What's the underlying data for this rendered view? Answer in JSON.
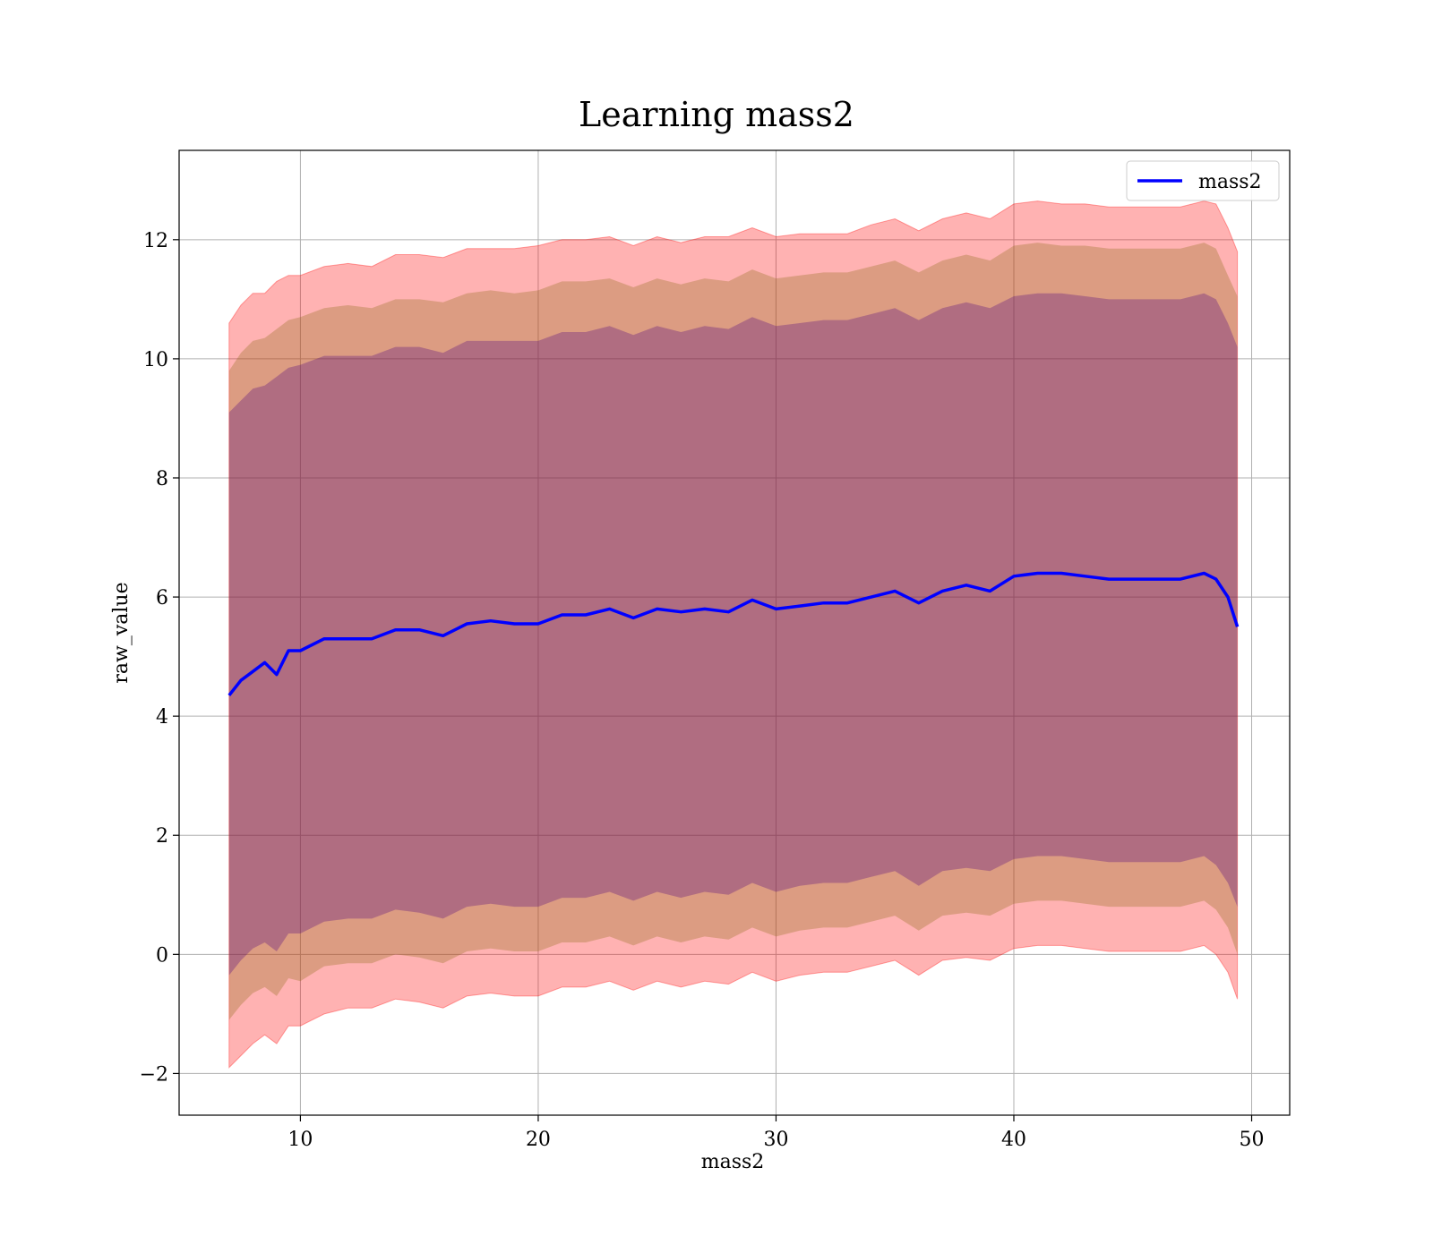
{
  "chart_data": {
    "type": "line",
    "title": "Learning mass2",
    "xlabel": "mass2",
    "ylabel": "raw_value",
    "xlim": [
      4.9,
      51.6
    ],
    "ylim": [
      -2.7,
      13.5
    ],
    "xticks": [
      10,
      20,
      30,
      40,
      50
    ],
    "yticks": [
      -2,
      0,
      2,
      4,
      6,
      8,
      10,
      12
    ],
    "grid": true,
    "legend": {
      "position": "top-right"
    },
    "colors": {
      "line": "#0000ff",
      "band": "#ff0000",
      "mid_band": "#8b6914",
      "inner_band": "#4b0082"
    },
    "x": [
      7.0,
      7.5,
      8.0,
      8.5,
      9.0,
      9.5,
      10.0,
      11.0,
      12.0,
      13.0,
      14.0,
      15.0,
      16.0,
      17.0,
      18.0,
      19.0,
      20.0,
      21.0,
      22.0,
      23.0,
      24.0,
      25.0,
      26.0,
      27.0,
      28.0,
      29.0,
      30.0,
      31.0,
      32.0,
      33.0,
      34.0,
      35.0,
      36.0,
      37.0,
      38.0,
      39.0,
      40.0,
      41.0,
      42.0,
      43.0,
      44.0,
      45.0,
      46.0,
      47.0,
      48.0,
      48.5,
      49.0,
      49.4
    ],
    "series": [
      {
        "name": "mass2",
        "values": [
          4.35,
          4.6,
          4.75,
          4.9,
          4.7,
          5.1,
          5.1,
          5.3,
          5.3,
          5.3,
          5.45,
          5.45,
          5.35,
          5.55,
          5.6,
          5.55,
          5.55,
          5.7,
          5.7,
          5.8,
          5.65,
          5.8,
          5.75,
          5.8,
          5.75,
          5.95,
          5.8,
          5.85,
          5.9,
          5.9,
          6.0,
          6.1,
          5.9,
          6.1,
          6.2,
          6.1,
          6.35,
          6.4,
          6.4,
          6.35,
          6.3,
          6.3,
          6.3,
          6.3,
          6.4,
          6.3,
          6.0,
          5.5
        ]
      }
    ],
    "bands": {
      "outer_upper": [
        10.6,
        10.9,
        11.1,
        11.1,
        11.3,
        11.4,
        11.4,
        11.55,
        11.6,
        11.55,
        11.75,
        11.75,
        11.7,
        11.85,
        11.85,
        11.85,
        11.9,
        12.0,
        12.0,
        12.05,
        11.9,
        12.05,
        11.95,
        12.05,
        12.05,
        12.2,
        12.05,
        12.1,
        12.1,
        12.1,
        12.25,
        12.35,
        12.15,
        12.35,
        12.45,
        12.35,
        12.6,
        12.65,
        12.6,
        12.6,
        12.55,
        12.55,
        12.55,
        12.55,
        12.65,
        12.6,
        12.2,
        11.8
      ],
      "outer_lower": [
        -1.9,
        -1.7,
        -1.5,
        -1.35,
        -1.5,
        -1.2,
        -1.2,
        -1.0,
        -0.9,
        -0.9,
        -0.75,
        -0.8,
        -0.9,
        -0.7,
        -0.65,
        -0.7,
        -0.7,
        -0.55,
        -0.55,
        -0.45,
        -0.6,
        -0.45,
        -0.55,
        -0.45,
        -0.5,
        -0.3,
        -0.45,
        -0.35,
        -0.3,
        -0.3,
        -0.2,
        -0.1,
        -0.35,
        -0.1,
        -0.05,
        -0.1,
        0.1,
        0.15,
        0.15,
        0.1,
        0.05,
        0.05,
        0.05,
        0.05,
        0.15,
        0.0,
        -0.3,
        -0.75
      ],
      "mid_upper": [
        9.8,
        10.1,
        10.3,
        10.35,
        10.5,
        10.65,
        10.7,
        10.85,
        10.9,
        10.85,
        11.0,
        11.0,
        10.95,
        11.1,
        11.15,
        11.1,
        11.15,
        11.3,
        11.3,
        11.35,
        11.2,
        11.35,
        11.25,
        11.35,
        11.3,
        11.5,
        11.35,
        11.4,
        11.45,
        11.45,
        11.55,
        11.65,
        11.45,
        11.65,
        11.75,
        11.65,
        11.9,
        11.95,
        11.9,
        11.9,
        11.85,
        11.85,
        11.85,
        11.85,
        11.95,
        11.85,
        11.4,
        11.05
      ],
      "mid_lower": [
        -1.1,
        -0.85,
        -0.65,
        -0.55,
        -0.7,
        -0.4,
        -0.45,
        -0.2,
        -0.15,
        -0.15,
        0.0,
        -0.05,
        -0.15,
        0.05,
        0.1,
        0.05,
        0.05,
        0.2,
        0.2,
        0.3,
        0.15,
        0.3,
        0.2,
        0.3,
        0.25,
        0.45,
        0.3,
        0.4,
        0.45,
        0.45,
        0.55,
        0.65,
        0.4,
        0.65,
        0.7,
        0.65,
        0.85,
        0.9,
        0.9,
        0.85,
        0.8,
        0.8,
        0.8,
        0.8,
        0.9,
        0.75,
        0.45,
        0.0
      ],
      "inner_upper": [
        9.1,
        9.3,
        9.5,
        9.55,
        9.7,
        9.85,
        9.9,
        10.05,
        10.05,
        10.05,
        10.2,
        10.2,
        10.1,
        10.3,
        10.3,
        10.3,
        10.3,
        10.45,
        10.45,
        10.55,
        10.4,
        10.55,
        10.45,
        10.55,
        10.5,
        10.7,
        10.55,
        10.6,
        10.65,
        10.65,
        10.75,
        10.85,
        10.65,
        10.85,
        10.95,
        10.85,
        11.05,
        11.1,
        11.1,
        11.05,
        11.0,
        11.0,
        11.0,
        11.0,
        11.1,
        11.0,
        10.6,
        10.2
      ],
      "inner_lower": [
        -0.35,
        -0.1,
        0.1,
        0.2,
        0.05,
        0.35,
        0.35,
        0.55,
        0.6,
        0.6,
        0.75,
        0.7,
        0.6,
        0.8,
        0.85,
        0.8,
        0.8,
        0.95,
        0.95,
        1.05,
        0.9,
        1.05,
        0.95,
        1.05,
        1.0,
        1.2,
        1.05,
        1.15,
        1.2,
        1.2,
        1.3,
        1.4,
        1.15,
        1.4,
        1.45,
        1.4,
        1.6,
        1.65,
        1.65,
        1.6,
        1.55,
        1.55,
        1.55,
        1.55,
        1.65,
        1.5,
        1.2,
        0.8
      ]
    }
  }
}
